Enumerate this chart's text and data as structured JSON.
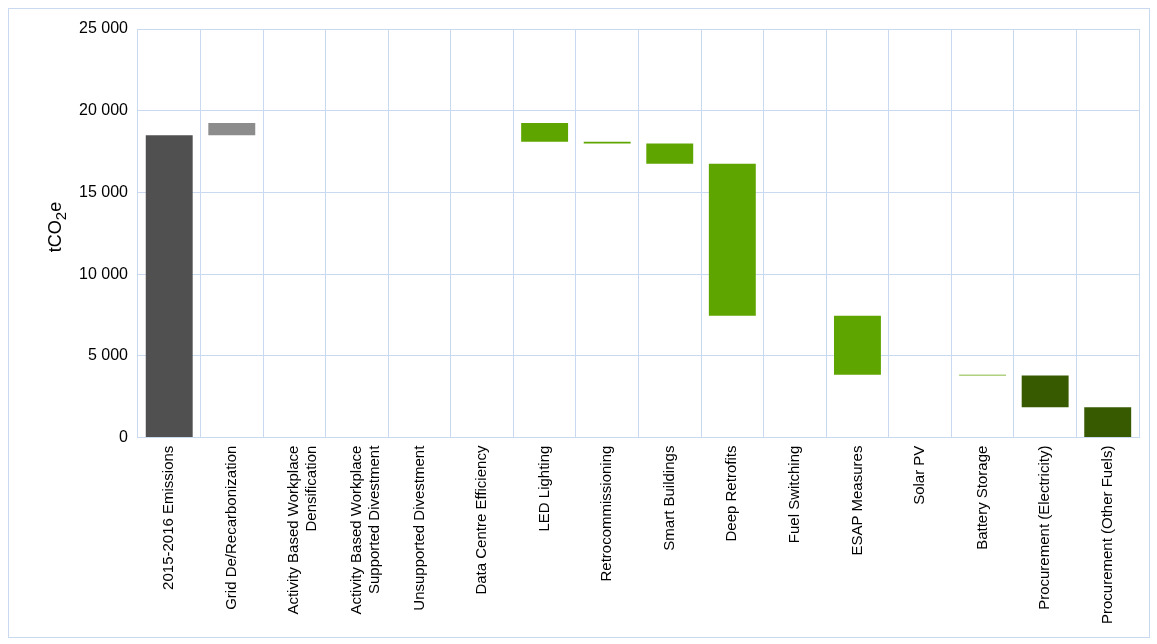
{
  "chart_data": {
    "type": "bar",
    "ylabel": "tCO$_{2}$e",
    "categories": [
      "2015-2016 Emissions",
      "Grid De/Recarbonization",
      "Activity Based Workplace Densification",
      "Activity Based Workplace Supported Divestment",
      "Unsupported Divestment",
      "Data Centre Efficiency",
      "LED Lighting",
      "Retrocommissioning",
      "Smart Buildings",
      "Deep Retrofits",
      "Fuel Switching",
      "ESAP Measures",
      "Solar PV",
      "Battery Storage",
      "Procurement (Electricity)",
      "Procurement (Other Fuels)"
    ],
    "values": [
      18500,
      750,
      null,
      null,
      null,
      null,
      1150,
      100,
      1250,
      9300,
      null,
      3600,
      null,
      50,
      1950,
      1850
    ],
    "base": [
      0,
      18500,
      null,
      null,
      null,
      null,
      18100,
      18000,
      16750,
      7450,
      null,
      3850,
      null,
      3800,
      1850,
      0
    ],
    "colors": [
      "#505050",
      "#8c8c8c",
      null,
      null,
      null,
      null,
      "#5fa500",
      "#5fa500",
      "#5fa500",
      "#5fa500",
      null,
      "#5fa500",
      null,
      "#5fa500",
      "#375a00",
      "#375a00"
    ],
    "ylim": [
      0,
      25000
    ],
    "yticks": [
      {
        "value": 0,
        "label": "0"
      },
      {
        "value": 5000,
        "label": "5 000"
      },
      {
        "value": 10000,
        "label": "10 000"
      },
      {
        "value": 15000,
        "label": "15 000"
      },
      {
        "value": 20000,
        "label": "20 000"
      },
      {
        "value": 25000,
        "label": "25 000"
      }
    ],
    "grid": true
  }
}
